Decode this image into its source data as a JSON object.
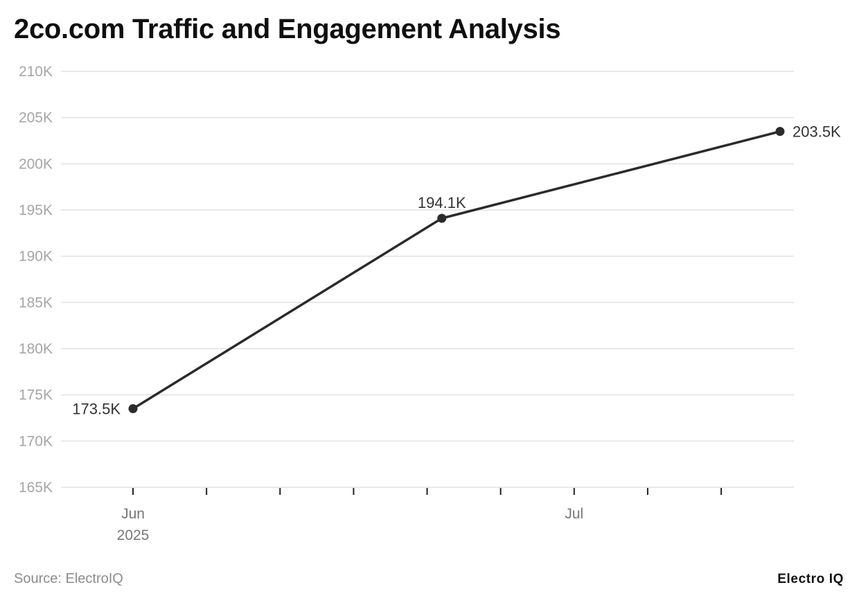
{
  "title": "2co.com Traffic and Engagement Analysis",
  "footer": {
    "source": "Source: ElectroIQ",
    "brand": "Electro IQ"
  },
  "colors": {
    "line": "#2b2b2b",
    "grid": "#e2e2e2",
    "axis_text": "#a6a6a6",
    "label_text": "#333333"
  },
  "chart_data": {
    "type": "line",
    "title": "2co.com Traffic and Engagement Analysis",
    "xlabel": "",
    "ylabel": "",
    "x": [
      "2025-06-01",
      "2025-06-22",
      "2025-07-15"
    ],
    "values": [
      173500,
      194100,
      203500
    ],
    "data_labels": [
      "173.5K",
      "194.1K",
      "203.5K"
    ],
    "ylim": [
      165000,
      210000
    ],
    "yticks": [
      165000,
      170000,
      175000,
      180000,
      185000,
      190000,
      195000,
      200000,
      205000,
      210000
    ],
    "ytick_labels": [
      "165K",
      "170K",
      "175K",
      "180K",
      "185K",
      "190K",
      "195K",
      "200K",
      "205K",
      "210K"
    ],
    "xlim": [
      "2025-05-27",
      "2025-07-15"
    ],
    "xticks": [
      "2025-06-01",
      "2025-06-06",
      "2025-06-11",
      "2025-06-16",
      "2025-06-21",
      "2025-06-26",
      "2025-07-01",
      "2025-07-06",
      "2025-07-11"
    ],
    "xtick_labels": [
      {
        "date": "2025-06-01",
        "lines": [
          "Jun",
          "2025"
        ]
      },
      {
        "date": "2025-07-01",
        "lines": [
          "Jul"
        ]
      }
    ],
    "grid": true,
    "legend": "none"
  }
}
